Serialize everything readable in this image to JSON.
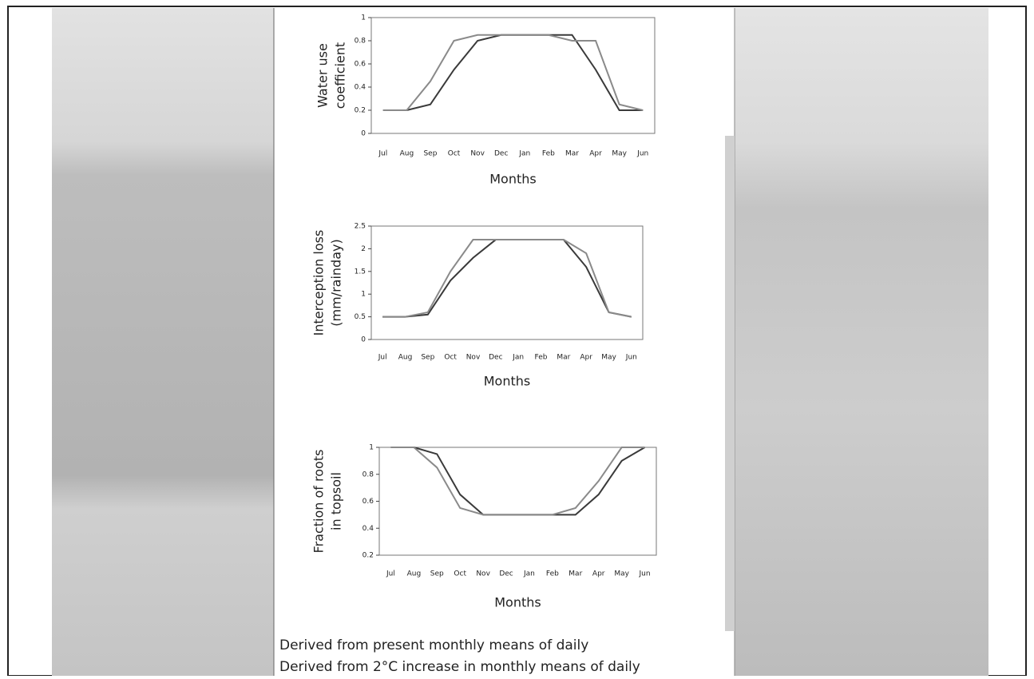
{
  "chart_data": [
    {
      "type": "line",
      "y_label": [
        "Water use",
        "coefficient"
      ],
      "x_label": "Months",
      "categories": [
        "Jul",
        "Aug",
        "Sep",
        "Oct",
        "Nov",
        "Dec",
        "Jan",
        "Feb",
        "Mar",
        "Apr",
        "May",
        "Jun"
      ],
      "ylim": [
        0,
        1
      ],
      "yticks": [
        0,
        0.2,
        0.4,
        0.6,
        0.8,
        1
      ],
      "series": [
        {
          "color": "#3a3a3a",
          "values": [
            0.2,
            0.2,
            0.25,
            0.55,
            0.8,
            0.85,
            0.85,
            0.85,
            0.85,
            0.55,
            0.2,
            0.2
          ]
        },
        {
          "color": "#8a8a8a",
          "values": [
            0.2,
            0.2,
            0.45,
            0.8,
            0.85,
            0.85,
            0.85,
            0.85,
            0.8,
            0.8,
            0.25,
            0.2
          ]
        }
      ]
    },
    {
      "type": "line",
      "y_label": [
        "Interception loss",
        "(mm/rainday)"
      ],
      "x_label": "Months",
      "categories": [
        "Jul",
        "Aug",
        "Sep",
        "Oct",
        "Nov",
        "Dec",
        "Jan",
        "Feb",
        "Mar",
        "Apr",
        "May",
        "Jun"
      ],
      "ylim": [
        0,
        2.5
      ],
      "yticks": [
        0,
        0.5,
        1,
        1.5,
        2,
        2.5
      ],
      "series": [
        {
          "color": "#3a3a3a",
          "values": [
            0.5,
            0.5,
            0.55,
            1.3,
            1.8,
            2.2,
            2.2,
            2.2,
            2.2,
            1.6,
            0.6,
            0.5
          ]
        },
        {
          "color": "#8a8a8a",
          "values": [
            0.5,
            0.5,
            0.6,
            1.5,
            2.2,
            2.2,
            2.2,
            2.2,
            2.2,
            1.9,
            0.6,
            0.5
          ]
        }
      ]
    },
    {
      "type": "line",
      "y_label": [
        "Fraction of roots",
        "in topsoil"
      ],
      "x_label": "Months",
      "categories": [
        "Jul",
        "Aug",
        "Sep",
        "Oct",
        "Nov",
        "Dec",
        "Jan",
        "Feb",
        "Mar",
        "Apr",
        "May",
        "Jun"
      ],
      "ylim": [
        0.2,
        1
      ],
      "yticks": [
        0.2,
        0.4,
        0.6,
        0.8,
        1
      ],
      "series": [
        {
          "color": "#3a3a3a",
          "values": [
            1,
            1,
            0.95,
            0.65,
            0.5,
            0.5,
            0.5,
            0.5,
            0.5,
            0.65,
            0.9,
            1
          ]
        },
        {
          "color": "#8a8a8a",
          "values": [
            1,
            1,
            0.85,
            0.55,
            0.5,
            0.5,
            0.5,
            0.5,
            0.55,
            0.75,
            1,
            1
          ]
        }
      ]
    }
  ],
  "notes": [
    "Derived from present monthly means of daily",
    "Derived from 2°C increase in monthly means of daily"
  ]
}
